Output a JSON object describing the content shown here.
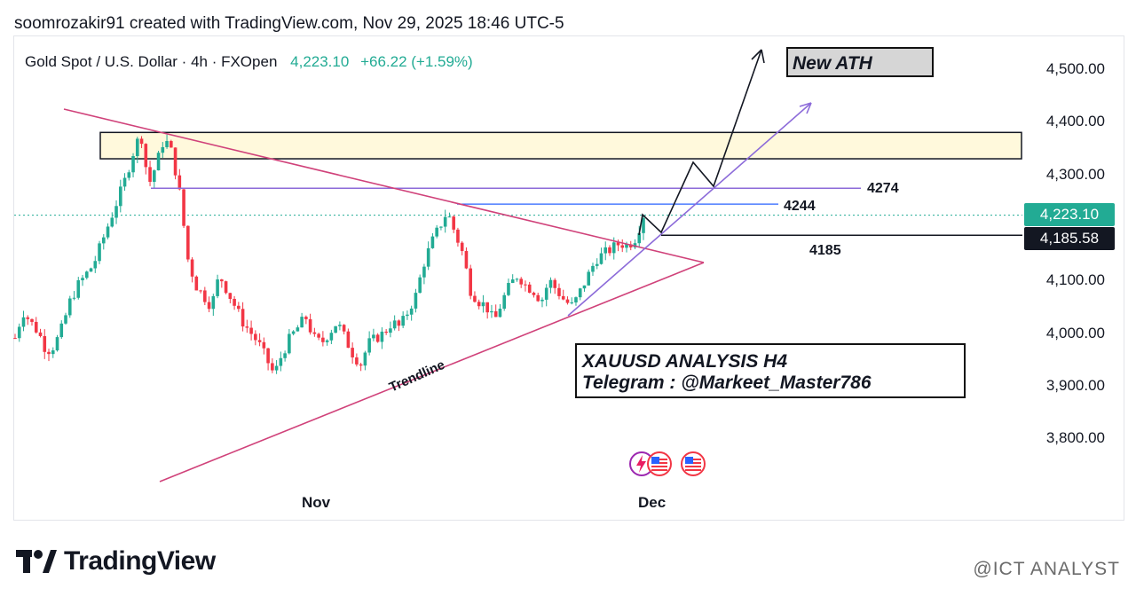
{
  "header": {
    "text": "soomrozakir91 created with TradingView.com, Nov 29, 2025 18:46 UTC-5"
  },
  "legend": {
    "symbol": "Gold Spot / U.S. Dollar · 4h · FXOpen",
    "price": "4,223.10",
    "change": "+66.22 (+1.59%)"
  },
  "colors": {
    "up": "#22ab94",
    "down": "#f23645",
    "triangle": "#d0427a",
    "trend_up": "#8c6bd9",
    "zone": "#fff9dc",
    "level_line": "#2962ff"
  },
  "chart_data": {
    "type": "candlestick",
    "title": "Gold Spot / U.S. Dollar · 4h · FXOpen",
    "xlabel": "",
    "ylabel": "",
    "ylim": [
      3750,
      4550
    ],
    "y_ticks": [
      "4,500.00",
      "4,400.00",
      "4,300.00",
      "4,200.00",
      "4,100.00",
      "4,000.00",
      "3,900.00",
      "3,800.00"
    ],
    "y_tick_values": [
      4500,
      4400,
      4300,
      4200,
      4100,
      4000,
      3900,
      3800
    ],
    "x_ticks": [
      "Nov",
      "Dec"
    ],
    "last_price": "4,223.10",
    "level_price": "4,185.58",
    "path_closes": [
      3990,
      4040,
      4020,
      4000,
      3965,
      3975,
      4010,
      4060,
      4090,
      4110,
      4130,
      4170,
      4210,
      4250,
      4290,
      4340,
      4380,
      4280,
      4320,
      4370,
      4340,
      4260,
      4140,
      4090,
      4070,
      4050,
      4110,
      4080,
      4050,
      4020,
      4000,
      3980,
      3950,
      3920,
      3960,
      3990,
      4010,
      4030,
      3990,
      3980,
      4000,
      4020,
      3990,
      3960,
      3940,
      3980,
      3990,
      4000,
      4020,
      4010,
      4040,
      4070,
      4130,
      4170,
      4200,
      4230,
      4190,
      4150,
      4080,
      4060,
      4050,
      4020,
      4060,
      4090,
      4110,
      4090,
      4080,
      4060,
      4100,
      4080,
      4060,
      4050,
      4080,
      4110,
      4140,
      4150,
      4160,
      4170,
      4165,
      4180,
      4223
    ],
    "levels": [
      {
        "label": "4274",
        "value": 4274
      },
      {
        "label": "4244",
        "value": 4244
      },
      {
        "label": "4185",
        "value": 4185
      }
    ],
    "zone": [
      4330,
      4380
    ],
    "annotations": [
      "Trendline",
      "New ATH"
    ]
  },
  "annotations": {
    "new_ath": "New ATH",
    "analysis_line1": "XAUUSD ANALYSIS  H4",
    "analysis_line2": "Telegram :  @Markeet_Master786",
    "trendline": "Trendline"
  },
  "footer": {
    "brand": "TradingView",
    "watermark": "@ICT ANALYST"
  }
}
